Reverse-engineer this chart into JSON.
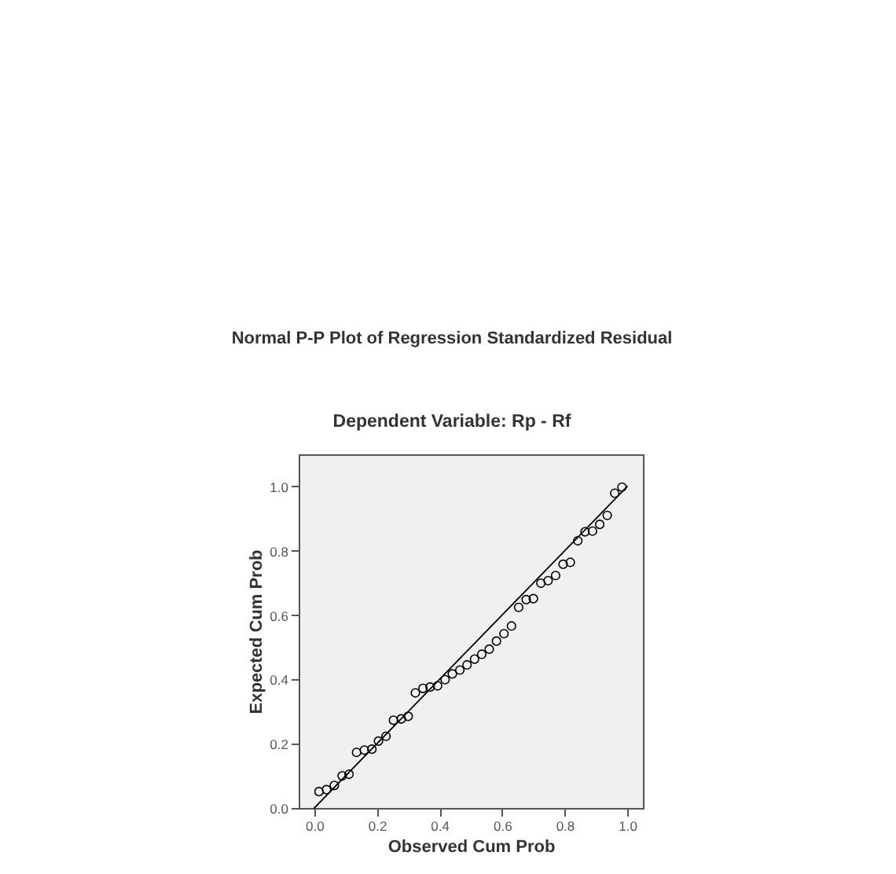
{
  "chart_data": {
    "type": "scatter",
    "title": "Normal P-P Plot of Regression Standardized Residual",
    "subtitle": "Dependent Variable: Rp - Rf",
    "xlabel": "Observed Cum Prob",
    "ylabel": "Expected Cum Prob",
    "xlim": [
      -0.05,
      1.05
    ],
    "ylim": [
      0,
      1.1
    ],
    "xticks": [
      {
        "value": 0,
        "label": "0.0"
      },
      {
        "value": 0.2,
        "label": "0.2"
      },
      {
        "value": 0.4,
        "label": "0.4"
      },
      {
        "value": 0.6,
        "label": "0.6"
      },
      {
        "value": 0.8,
        "label": "0.8"
      },
      {
        "value": 1,
        "label": "1.0"
      }
    ],
    "yticks": [
      {
        "value": 0,
        "label": "0.0"
      },
      {
        "value": 0.2,
        "label": "0.2"
      },
      {
        "value": 0.4,
        "label": "0.4"
      },
      {
        "value": 0.6,
        "label": "0.6"
      },
      {
        "value": 0.8,
        "label": "0.8"
      },
      {
        "value": 1,
        "label": "1.0"
      }
    ],
    "series": [
      {
        "color": "#000000",
        "x": [
          0.015,
          0.039,
          0.064,
          0.089,
          0.111,
          0.135,
          0.16,
          0.184,
          0.205,
          0.229,
          0.253,
          0.278,
          0.3,
          0.323,
          0.347,
          0.37,
          0.394,
          0.418,
          0.441,
          0.465,
          0.488,
          0.512,
          0.535,
          0.559,
          0.582,
          0.606,
          0.63,
          0.653,
          0.677,
          0.7,
          0.724,
          0.747,
          0.771,
          0.795,
          0.818,
          0.842,
          0.865,
          0.889,
          0.912,
          0.936,
          0.96,
          0.983
        ],
        "values": [
          0.051,
          0.057,
          0.07,
          0.1,
          0.105,
          0.173,
          0.18,
          0.183,
          0.208,
          0.223,
          0.273,
          0.277,
          0.285,
          0.358,
          0.372,
          0.376,
          0.38,
          0.399,
          0.417,
          0.429,
          0.445,
          0.463,
          0.478,
          0.494,
          0.519,
          0.542,
          0.566,
          0.624,
          0.648,
          0.651,
          0.699,
          0.707,
          0.723,
          0.758,
          0.764,
          0.831,
          0.859,
          0.861,
          0.882,
          0.91,
          0.979,
          0.998
        ]
      },
      {
        "type": "line",
        "color": "#000000",
        "marker": "none",
        "x": [
          0,
          1
        ],
        "values": [
          0,
          1
        ]
      }
    ],
    "marker": "circle",
    "grid": false
  }
}
